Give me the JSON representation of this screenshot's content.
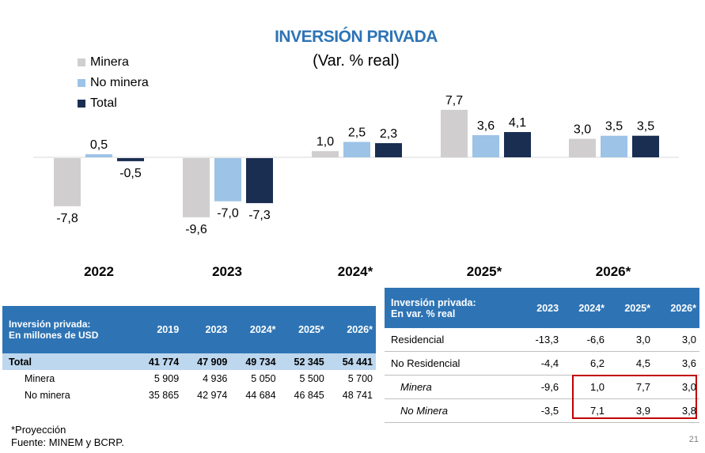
{
  "chart_data": {
    "type": "bar",
    "title": "INVERSIÓN PRIVADA",
    "subtitle": "(Var. % real)",
    "categories": [
      "2022",
      "2023",
      "2024*",
      "2025*",
      "2026*"
    ],
    "series": [
      {
        "name": "Minera",
        "color": "#d0cece",
        "values": [
          -7.8,
          -9.6,
          1.0,
          7.7,
          3.0
        ],
        "labels": [
          "-7,8",
          "-9,6",
          "1,0",
          "7,7",
          "3,0"
        ]
      },
      {
        "name": "No minera",
        "color": "#9dc3e6",
        "values": [
          0.5,
          -7.0,
          2.5,
          3.6,
          3.5
        ],
        "labels": [
          "0,5",
          "-7,0",
          "2,5",
          "3,6",
          "3,5"
        ]
      },
      {
        "name": "Total",
        "color": "#1a2e52",
        "values": [
          -0.5,
          -7.3,
          2.3,
          4.1,
          3.5
        ],
        "labels": [
          "-0,5",
          "-7,3",
          "2,3",
          "4,1",
          "3,5"
        ]
      }
    ],
    "legend_position": "top-left",
    "grid": false
  },
  "table_usd": {
    "header_label": [
      "Inversión privada:",
      "En millones de USD"
    ],
    "columns": [
      "2019",
      "2023",
      "2024*",
      "2025*",
      "2026*"
    ],
    "rows": [
      {
        "label": "Total",
        "values": [
          "41 774",
          "47 909",
          "49 734",
          "52 345",
          "54 441"
        ]
      },
      {
        "label": "Minera",
        "values": [
          "5 909",
          "4 936",
          "5 050",
          "5 500",
          "5 700"
        ]
      },
      {
        "label": "No minera",
        "values": [
          "35 865",
          "42 974",
          "44 684",
          "46 845",
          "48 741"
        ]
      }
    ]
  },
  "table_var": {
    "header_label": [
      "Inversión privada:",
      "En var. % real"
    ],
    "columns": [
      "2023",
      "2024*",
      "2025*",
      "2026*"
    ],
    "rows": [
      {
        "label": "Residencial",
        "values": [
          "-13,3",
          "-6,6",
          "3,0",
          "3,0"
        ]
      },
      {
        "label": "No Residencial",
        "values": [
          "-4,4",
          "6,2",
          "4,5",
          "3,6"
        ]
      },
      {
        "label": "Minera",
        "values": [
          "-9,6",
          "1,0",
          "7,7",
          "3,0"
        ]
      },
      {
        "label": "No Minera",
        "values": [
          "-3,5",
          "7,1",
          "3,9",
          "3,8"
        ]
      }
    ]
  },
  "footnote": {
    "line1": "*Proyección",
    "line2": "Fuente: MINEM y BCRP."
  },
  "page_number": "21"
}
